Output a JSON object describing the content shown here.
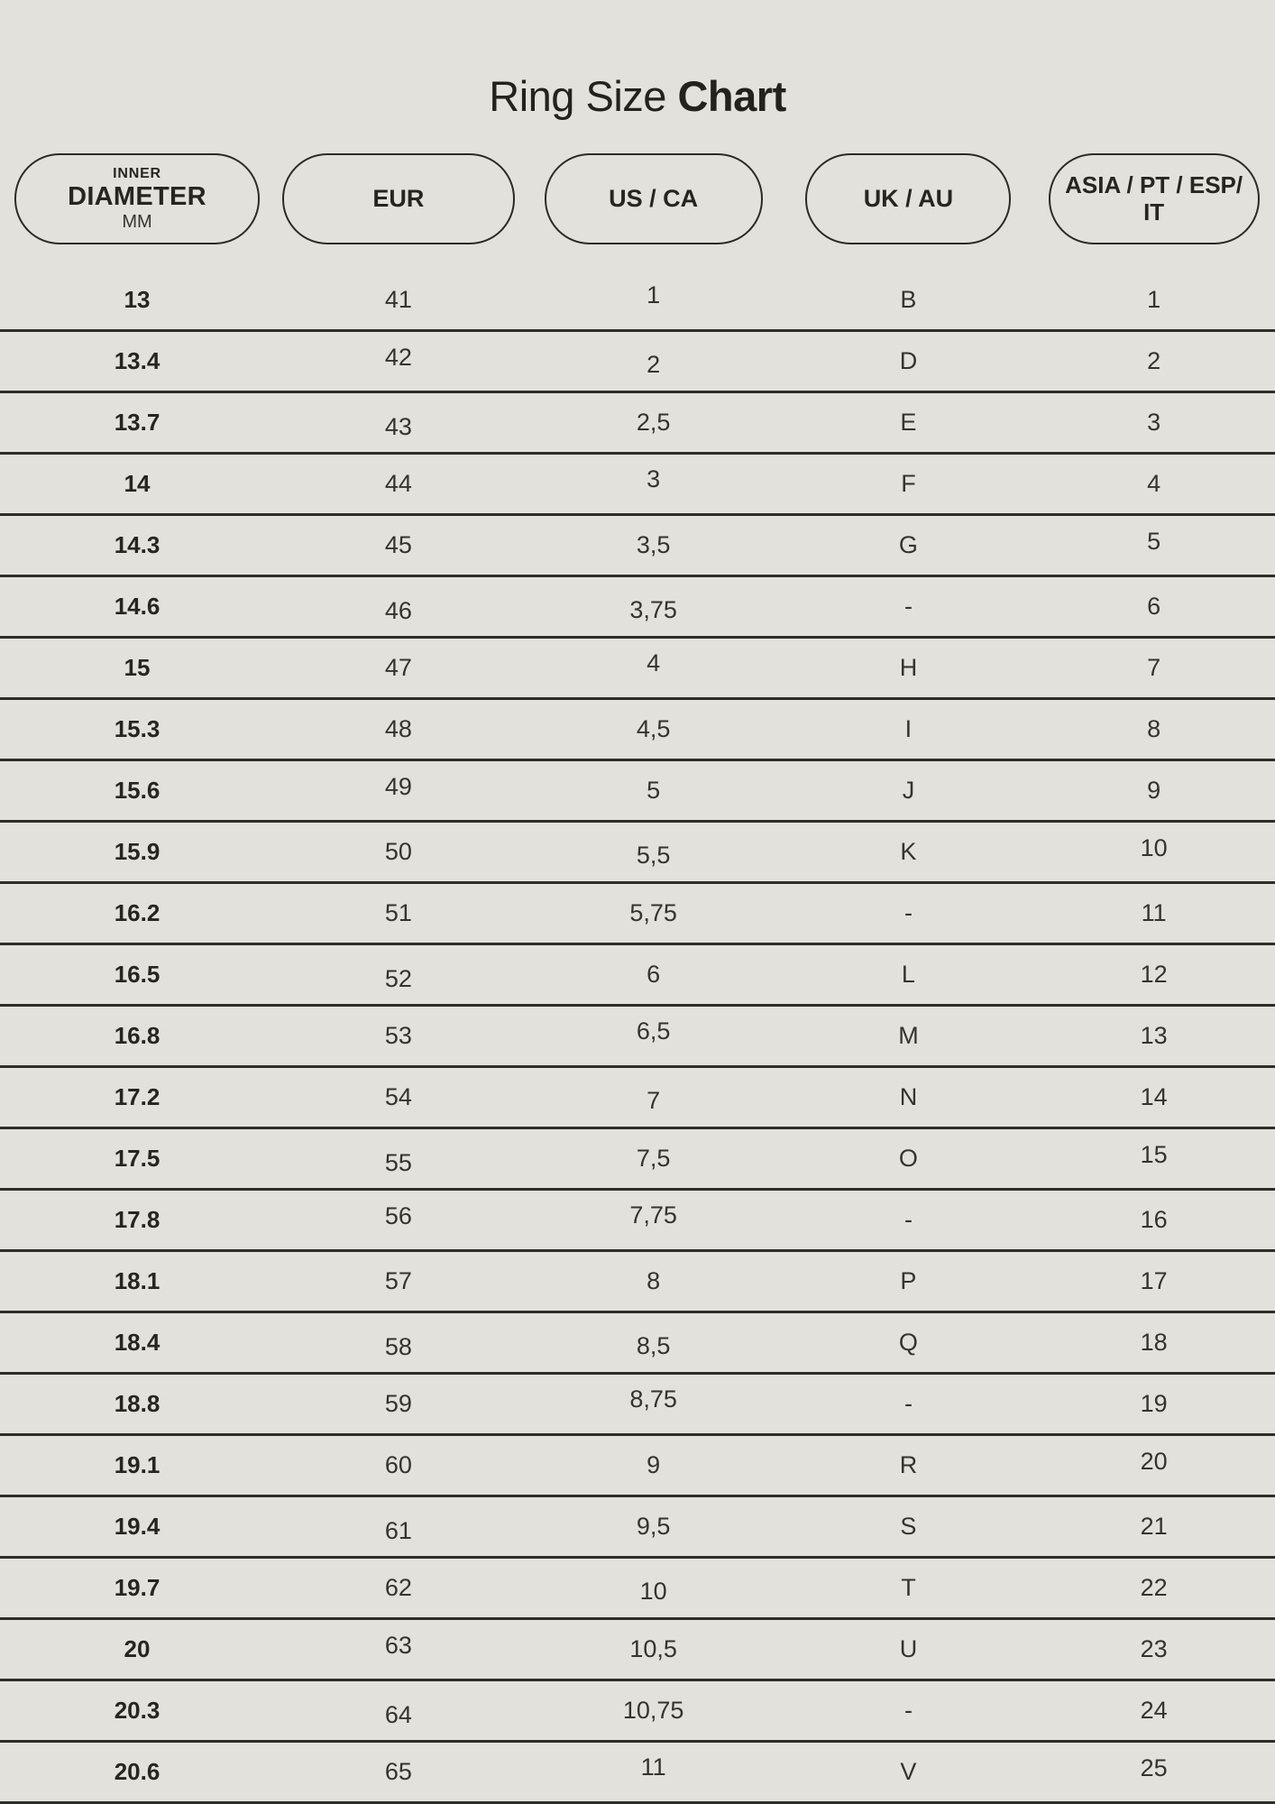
{
  "title": {
    "regular": "Ring Size ",
    "bold": "Chart"
  },
  "header": {
    "columns": [
      {
        "id": "diameter",
        "top": "INNER",
        "main": "DIAMETER",
        "bottom": "MM"
      },
      {
        "id": "eur",
        "main": "EUR"
      },
      {
        "id": "us-ca",
        "main": "US / CA"
      },
      {
        "id": "uk-au",
        "main": "UK / AU"
      },
      {
        "id": "asia",
        "main": "ASIA / PT / ESP/ IT"
      }
    ]
  },
  "chart_data": {
    "type": "table",
    "title": "Ring Size Chart",
    "columns": [
      "INNER DIAMETER MM",
      "EUR",
      "US / CA",
      "UK / AU",
      "ASIA / PT / ESP/ IT"
    ],
    "column_ids": [
      "diameter",
      "eur",
      "us-ca",
      "uk-au",
      "asia"
    ],
    "rows": [
      [
        "13",
        "41",
        "1",
        "B",
        "1"
      ],
      [
        "13.4",
        "42",
        "2",
        "D",
        "2"
      ],
      [
        "13.7",
        "43",
        "2,5",
        "E",
        "3"
      ],
      [
        "14",
        "44",
        "3",
        "F",
        "4"
      ],
      [
        "14.3",
        "45",
        "3,5",
        "G",
        "5"
      ],
      [
        "14.6",
        "46",
        "3,75",
        "-",
        "6"
      ],
      [
        "15",
        "47",
        "4",
        "H",
        "7"
      ],
      [
        "15.3",
        "48",
        "4,5",
        "I",
        "8"
      ],
      [
        "15.6",
        "49",
        "5",
        "J",
        "9"
      ],
      [
        "15.9",
        "50",
        "5,5",
        "K",
        "10"
      ],
      [
        "16.2",
        "51",
        "5,75",
        "-",
        "11"
      ],
      [
        "16.5",
        "52",
        "6",
        "L",
        "12"
      ],
      [
        "16.8",
        "53",
        "6,5",
        "M",
        "13"
      ],
      [
        "17.2",
        "54",
        "7",
        "N",
        "14"
      ],
      [
        "17.5",
        "55",
        "7,5",
        "O",
        "15"
      ],
      [
        "17.8",
        "56",
        "7,75",
        "-",
        "16"
      ],
      [
        "18.1",
        "57",
        "8",
        "P",
        "17"
      ],
      [
        "18.4",
        "58",
        "8,5",
        "Q",
        "18"
      ],
      [
        "18.8",
        "59",
        "8,75",
        "-",
        "19"
      ],
      [
        "19.1",
        "60",
        "9",
        "R",
        "20"
      ],
      [
        "19.4",
        "61",
        "9,5",
        "S",
        "21"
      ],
      [
        "19.7",
        "62",
        "10",
        "T",
        "22"
      ],
      [
        "20",
        "63",
        "10,5",
        "U",
        "23"
      ],
      [
        "20.3",
        "64",
        "10,75",
        "-",
        "24"
      ],
      [
        "20.6",
        "65",
        "11",
        "V",
        "25"
      ]
    ]
  },
  "colors": {
    "background": "#e2e1db",
    "text_dark": "#26251f",
    "text_regular": "#34332d",
    "line": "#2e2d28",
    "pill_border": "#2b2a24"
  }
}
